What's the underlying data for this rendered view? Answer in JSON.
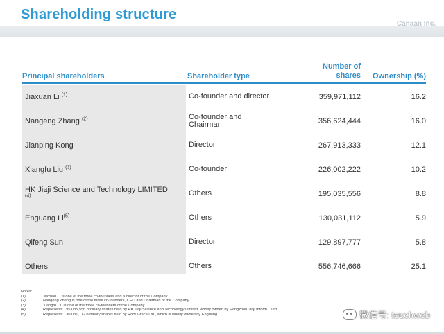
{
  "slide": {
    "title": "Shareholding structure",
    "brand": "Canaan Inc."
  },
  "table": {
    "headers": {
      "shareholders": "Principal shareholders",
      "type": "Shareholder type",
      "shares": "Number of shares",
      "ownership": "Ownership (%)"
    },
    "rows": [
      {
        "name": "Jiaxuan Li",
        "note": "(1)",
        "type": "Co-founder and director",
        "shares": "359,971,112",
        "ownership": "16.2"
      },
      {
        "name": "Nangeng Zhang",
        "note": "(2)",
        "type": "Co-founder and Chairman",
        "shares": "356,624,444",
        "ownership": "16.0"
      },
      {
        "name": "Jianping Kong",
        "note": "",
        "type": "Director",
        "shares": "267,913,333",
        "ownership": "12.1"
      },
      {
        "name": "Xiangfu Liu",
        "note": "(3)",
        "type": "Co-founder",
        "shares": "226,002,222",
        "ownership": "10.2"
      },
      {
        "name": "HK Jiaji Science and Technology LIMITED",
        "note": "(4)",
        "type": "Others",
        "shares": "195,035,556",
        "ownership": "8.8"
      },
      {
        "name": "Enguang Li",
        "note": "(5)",
        "type": "Others",
        "shares": "130,031,112",
        "ownership": "5.9"
      },
      {
        "name": "Qifeng Sun",
        "note": "",
        "type": "Director",
        "shares": "129,897,777",
        "ownership": "5.8"
      },
      {
        "name": "Others",
        "note": "",
        "type": "Others",
        "shares": "556,746,666",
        "ownership": "25.1"
      }
    ]
  },
  "notes": {
    "heading": "Notes:",
    "items": [
      {
        "num": "(1)",
        "text": "Jiaxuan Li is one of the three co-founders and a director of the Company."
      },
      {
        "num": "(2)",
        "text": "Nangeng Zhang is one of the three co-founders, CEO and Chairman of the Company."
      },
      {
        "num": "(3)",
        "text": "Xiangfu Liu is one of the three co-founders of the Company."
      },
      {
        "num": "(4)",
        "text": "Represents 195,035,556 ordinary shares held by HK Jiaji Science and Technology Limited, wholly owned by Hangzhou Jiaji Inform... Ltd."
      },
      {
        "num": "(5)",
        "text": "Represents 130,031,112 ordinary shares held by Root Grace Ltd., which is wholly owned by Enguang Li."
      }
    ]
  },
  "watermark": {
    "text": "微信号: touchweb",
    "icon": "wechat-icon"
  }
}
